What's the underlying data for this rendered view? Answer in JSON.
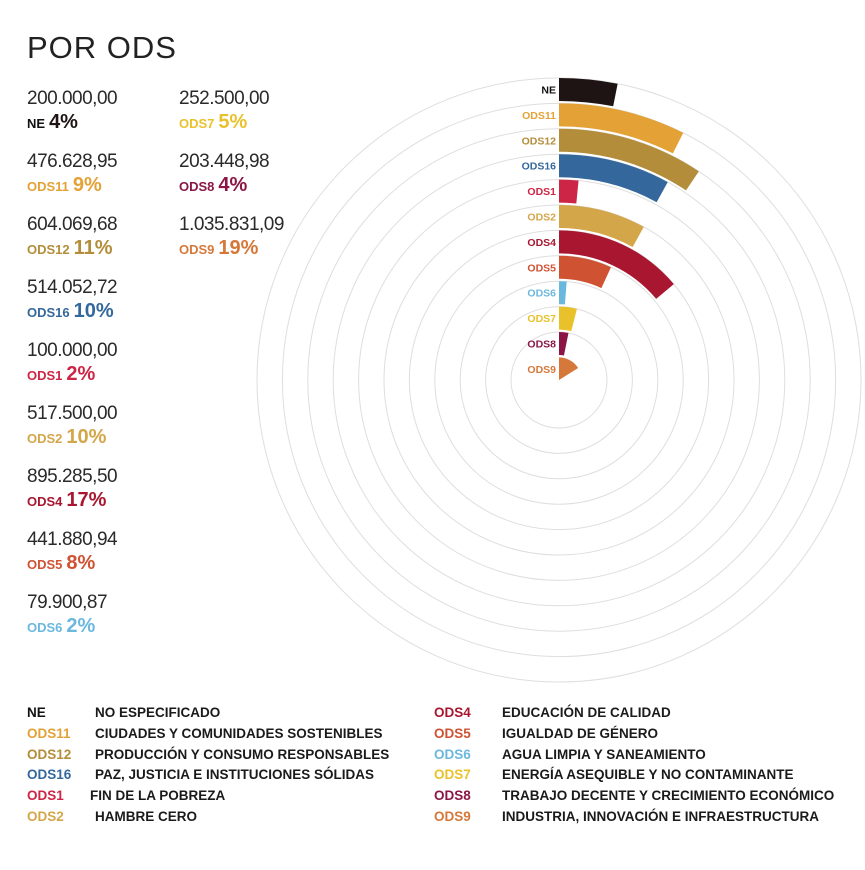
{
  "title": "POR ODS",
  "colors": {
    "NE": "#1f1414",
    "ODS11": "#e4a236",
    "ODS12": "#b38d3a",
    "ODS16": "#34689c",
    "ODS1": "#cd2546",
    "ODS2": "#d4a64a",
    "ODS4": "#a8162f",
    "ODS5": "#cf5233",
    "ODS6": "#6bb8de",
    "ODS7": "#e9c22b",
    "ODS8": "#8b1645",
    "ODS9": "#d6783a"
  },
  "stats": [
    {
      "code": "NE",
      "amount": "200.000,00",
      "pct": "4%"
    },
    {
      "code": "ODS11",
      "amount": "476.628,95",
      "pct": "9%"
    },
    {
      "code": "ODS12",
      "amount": "604.069,68",
      "pct": "11%"
    },
    {
      "code": "ODS16",
      "amount": "514.052,72",
      "pct": "10%"
    },
    {
      "code": "ODS1",
      "amount": "100.000,00",
      "pct": "2%"
    },
    {
      "code": "ODS2",
      "amount": "517.500,00",
      "pct": "10%"
    },
    {
      "code": "ODS4",
      "amount": "895.285,50",
      "pct": "17%"
    },
    {
      "code": "ODS5",
      "amount": "441.880,94",
      "pct": "8%"
    },
    {
      "code": "ODS6",
      "amount": "79.900,87",
      "pct": "2%"
    },
    {
      "code": "ODS7",
      "amount": "252.500,00",
      "pct": "5%"
    },
    {
      "code": "ODS8",
      "amount": "203.448,98",
      "pct": "4%"
    },
    {
      "code": "ODS9",
      "amount": "1.035.831,09",
      "pct": "19%"
    }
  ],
  "chart_data": {
    "type": "radial-bar",
    "categories": [
      "NE",
      "ODS11",
      "ODS12",
      "ODS16",
      "ODS1",
      "ODS2",
      "ODS4",
      "ODS5",
      "ODS6",
      "ODS7",
      "ODS8",
      "ODS9"
    ],
    "values": [
      200000.0,
      476628.95,
      604069.68,
      514052.72,
      100000.0,
      517500.0,
      895285.5,
      441880.94,
      79900.87,
      252500.0,
      203448.98,
      1035831.09
    ],
    "percentages": [
      4,
      9,
      11,
      10,
      2,
      10,
      17,
      8,
      2,
      5,
      4,
      19
    ],
    "grid": true
  },
  "legend": [
    {
      "code": "NE",
      "desc": "NO ESPECIFICADO"
    },
    {
      "code": "ODS11",
      "desc": "CIUDADES Y COMUNIDADES SOSTENIBLES"
    },
    {
      "code": "ODS12",
      "desc": "PRODUCCIÓN Y CONSUMO RESPONSABLES"
    },
    {
      "code": "ODS16",
      "desc": "PAZ, JUSTICIA E INSTITUCIONES SÓLIDAS"
    },
    {
      "code": "ODS1",
      "desc": "FIN DE LA POBREZA"
    },
    {
      "code": "ODS2",
      "desc": "HAMBRE CERO"
    },
    {
      "code": "ODS4",
      "desc": "EDUCACIÓN DE CALIDAD"
    },
    {
      "code": "ODS5",
      "desc": "IGUALDAD DE GÉNERO"
    },
    {
      "code": "ODS6",
      "desc": "AGUA LIMPIA Y SANEAMIENTO"
    },
    {
      "code": "ODS7",
      "desc": "ENERGÍA ASEQUIBLE Y NO CONTAMINANTE"
    },
    {
      "code": "ODS8",
      "desc": "TRABAJO DECENTE Y CRECIMIENTO ECONÓMICO"
    },
    {
      "code": "ODS9",
      "desc": "INDUSTRIA, INNOVACIÓN E INFRAESTRUCTURA"
    }
  ]
}
